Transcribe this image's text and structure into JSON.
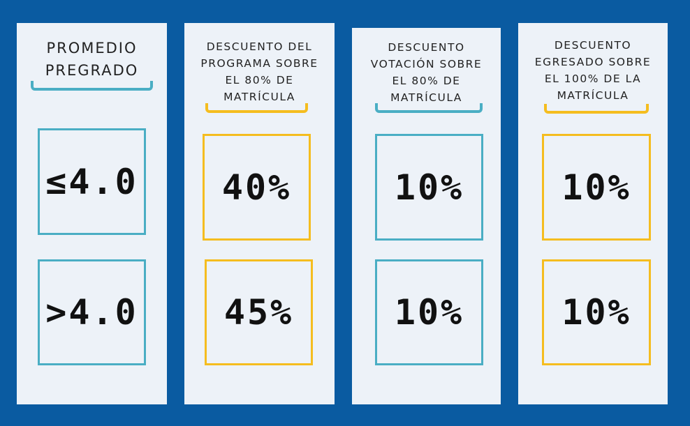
{
  "colors": {
    "background": "#0a5ba1",
    "panel": "#edf2f8",
    "teal_accent": "#4aaec4",
    "gold_accent": "#f5bd1f",
    "text": "#111111"
  },
  "columns": [
    {
      "header_lines": [
        "PROMEDIO",
        "PREGRADO"
      ],
      "accent": "teal",
      "values": [
        "≤4.0",
        ">4.0"
      ]
    },
    {
      "header_lines": [
        "DESCUENTO DEL",
        "PROGRAMA SOBRE",
        "EL 80% DE",
        "MATRÍCULA"
      ],
      "accent": "gold",
      "values": [
        "40%",
        "45%"
      ]
    },
    {
      "header_lines": [
        "DESCUENTO",
        "VOTACIÓN SOBRE",
        "EL 80% DE",
        "MATRÍCULA"
      ],
      "accent": "teal",
      "values": [
        "10%",
        "10%"
      ]
    },
    {
      "header_lines": [
        "DESCUENTO",
        "EGRESADO SOBRE",
        "EL 100% DE LA",
        "MATRÍCULA"
      ],
      "accent": "gold",
      "values": [
        "10%",
        "10%"
      ]
    }
  ]
}
